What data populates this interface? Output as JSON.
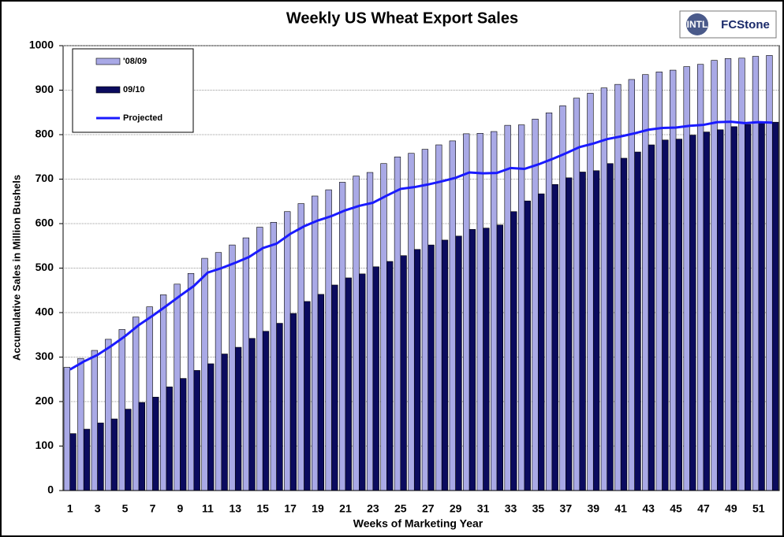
{
  "chart_data": {
    "type": "bar",
    "title": "Weekly US Wheat Export Sales",
    "logo": [
      "INTL",
      "FCStone"
    ],
    "x_label": "Weeks of Marketing Year",
    "y_label": "Accumulative Sales in Million Bushels",
    "categories": [
      1,
      null,
      3,
      null,
      5,
      null,
      7,
      null,
      9,
      null,
      11,
      null,
      13,
      null,
      15,
      null,
      17,
      null,
      19,
      null,
      21,
      null,
      23,
      null,
      25,
      null,
      27,
      null,
      29,
      null,
      31,
      null,
      33,
      null,
      35,
      null,
      37,
      null,
      39,
      null,
      41,
      null,
      43,
      null,
      45,
      null,
      47,
      null,
      49,
      null,
      51,
      null
    ],
    "ylim": [
      0,
      1000
    ],
    "yticks": [
      0,
      100,
      200,
      300,
      400,
      500,
      600,
      700,
      800,
      900,
      1000
    ],
    "grid": true,
    "legend": "top-left",
    "series": [
      {
        "name": "'08/09",
        "color": "#a9a9e6",
        "type": "bar",
        "values": [
          277,
          297,
          315,
          340,
          362,
          390,
          413,
          440,
          464,
          488,
          522,
          535,
          552,
          568,
          592,
          603,
          627,
          645,
          662,
          676,
          693,
          707,
          715,
          735,
          750,
          758,
          767,
          777,
          786,
          802,
          803,
          807,
          821,
          822,
          835,
          849,
          865,
          882,
          893,
          905,
          913,
          924,
          935,
          941,
          945,
          953,
          958,
          967,
          971,
          972,
          976,
          978
        ]
      },
      {
        "name": "09/10",
        "color": "#0b0b5e",
        "type": "bar",
        "values": [
          128,
          138,
          152,
          161,
          183,
          198,
          210,
          233,
          252,
          270,
          285,
          307,
          322,
          342,
          358,
          376,
          398,
          425,
          441,
          462,
          478,
          487,
          503,
          515,
          528,
          542,
          552,
          563,
          572,
          587,
          590,
          597,
          627,
          651,
          667,
          688,
          703,
          716,
          719,
          735,
          747,
          761,
          777,
          788,
          790,
          799,
          806,
          811,
          818,
          823,
          826,
          828
        ]
      },
      {
        "name": "Projected",
        "color": "#1a1aff",
        "type": "line",
        "values": [
          272,
          290,
          305,
          325,
          347,
          372,
          393,
          415,
          438,
          460,
          490,
          500,
          512,
          525,
          545,
          555,
          577,
          594,
          607,
          617,
          630,
          640,
          647,
          663,
          678,
          682,
          688,
          695,
          703,
          715,
          713,
          714,
          725,
          723,
          733,
          745,
          758,
          772,
          780,
          790,
          796,
          803,
          811,
          815,
          816,
          820,
          822,
          828,
          829,
          826,
          828,
          827
        ]
      }
    ]
  }
}
